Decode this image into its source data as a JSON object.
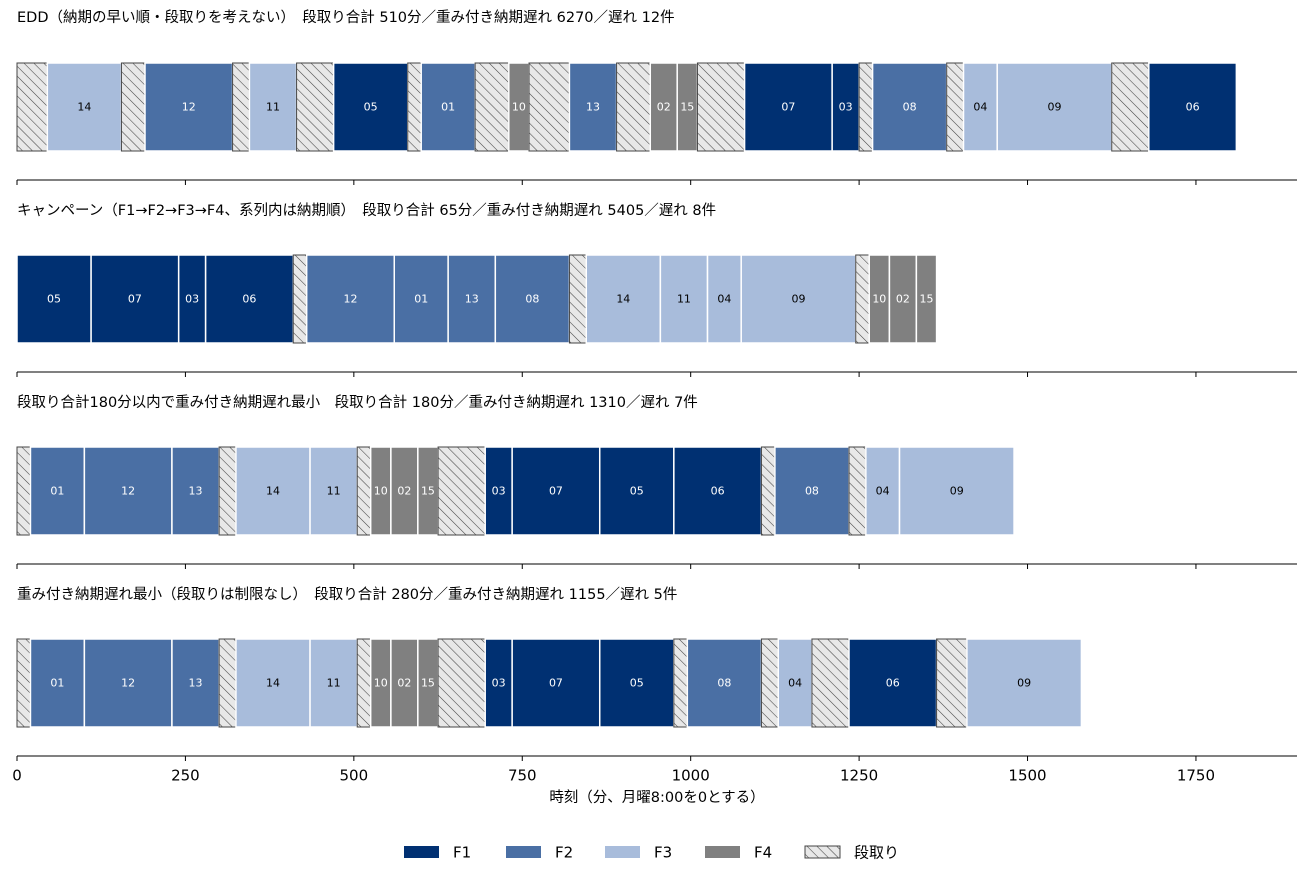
{
  "chart_data": {
    "type": "gantt",
    "xlabel": "時刻（分、月曜8:00を0とする）",
    "xlim": [
      0,
      1900
    ],
    "xticks": [
      0,
      250,
      500,
      750,
      1000,
      1250,
      1500,
      1750
    ],
    "xtick_labels": [
      "0",
      "250",
      "500",
      "750",
      "1000",
      "1250",
      "1500",
      "1750"
    ],
    "legend_position": "bottom-center",
    "colors": {
      "F1": "#003072",
      "F2": "#4a6fa4",
      "F3": "#a8bcdb",
      "F4": "#808080",
      "setup": "#e8e8e8"
    },
    "legend": [
      {
        "key": "F1",
        "label": "F1"
      },
      {
        "key": "F2",
        "label": "F2"
      },
      {
        "key": "F3",
        "label": "F3"
      },
      {
        "key": "F4",
        "label": "F4"
      },
      {
        "key": "setup",
        "label": "段取り"
      }
    ],
    "panels": [
      {
        "title": "EDD（納期の早い順・段取りを考えない）　段取り合計 510分／重み付き納期遅れ 6270／遅れ 12件",
        "bars": [
          {
            "kind": "setup",
            "start": 0,
            "end": 45
          },
          {
            "kind": "job",
            "family": "F3",
            "label": "14",
            "start": 45,
            "end": 155
          },
          {
            "kind": "setup",
            "start": 155,
            "end": 190
          },
          {
            "kind": "job",
            "family": "F2",
            "label": "12",
            "start": 190,
            "end": 320
          },
          {
            "kind": "setup",
            "start": 320,
            "end": 345
          },
          {
            "kind": "job",
            "family": "F3",
            "label": "11",
            "start": 345,
            "end": 415
          },
          {
            "kind": "setup",
            "start": 415,
            "end": 470
          },
          {
            "kind": "job",
            "family": "F1",
            "label": "05",
            "start": 470,
            "end": 580
          },
          {
            "kind": "setup",
            "start": 580,
            "end": 600
          },
          {
            "kind": "job",
            "family": "F2",
            "label": "01",
            "start": 600,
            "end": 680
          },
          {
            "kind": "setup",
            "start": 680,
            "end": 730
          },
          {
            "kind": "job",
            "family": "F4",
            "label": "10",
            "start": 730,
            "end": 760
          },
          {
            "kind": "setup",
            "start": 760,
            "end": 820
          },
          {
            "kind": "job",
            "family": "F2",
            "label": "13",
            "start": 820,
            "end": 890
          },
          {
            "kind": "setup",
            "start": 890,
            "end": 940
          },
          {
            "kind": "job",
            "family": "F4",
            "label": "02",
            "start": 940,
            "end": 980
          },
          {
            "kind": "job",
            "family": "F4",
            "label": "15",
            "start": 980,
            "end": 1010
          },
          {
            "kind": "setup",
            "start": 1010,
            "end": 1080
          },
          {
            "kind": "job",
            "family": "F1",
            "label": "07",
            "start": 1080,
            "end": 1210
          },
          {
            "kind": "job",
            "family": "F1",
            "label": "03",
            "start": 1210,
            "end": 1250
          },
          {
            "kind": "setup",
            "start": 1250,
            "end": 1270
          },
          {
            "kind": "job",
            "family": "F2",
            "label": "08",
            "start": 1270,
            "end": 1380
          },
          {
            "kind": "setup",
            "start": 1380,
            "end": 1405
          },
          {
            "kind": "job",
            "family": "F3",
            "label": "04",
            "start": 1405,
            "end": 1455
          },
          {
            "kind": "job",
            "family": "F3",
            "label": "09",
            "start": 1455,
            "end": 1625
          },
          {
            "kind": "setup",
            "start": 1625,
            "end": 1680
          },
          {
            "kind": "job",
            "family": "F1",
            "label": "06",
            "start": 1680,
            "end": 1810
          }
        ]
      },
      {
        "title": "キャンペーン（F1→F2→F3→F4、系列内は納期順）　段取り合計 65分／重み付き納期遅れ 5405／遅れ 8件",
        "bars": [
          {
            "kind": "job",
            "family": "F1",
            "label": "05",
            "start": 0,
            "end": 110
          },
          {
            "kind": "job",
            "family": "F1",
            "label": "07",
            "start": 110,
            "end": 240
          },
          {
            "kind": "job",
            "family": "F1",
            "label": "03",
            "start": 240,
            "end": 280
          },
          {
            "kind": "job",
            "family": "F1",
            "label": "06",
            "start": 280,
            "end": 410
          },
          {
            "kind": "setup",
            "start": 410,
            "end": 430
          },
          {
            "kind": "job",
            "family": "F2",
            "label": "12",
            "start": 430,
            "end": 560
          },
          {
            "kind": "job",
            "family": "F2",
            "label": "01",
            "start": 560,
            "end": 640
          },
          {
            "kind": "job",
            "family": "F2",
            "label": "13",
            "start": 640,
            "end": 710
          },
          {
            "kind": "job",
            "family": "F2",
            "label": "08",
            "start": 710,
            "end": 820
          },
          {
            "kind": "setup",
            "start": 820,
            "end": 845
          },
          {
            "kind": "job",
            "family": "F3",
            "label": "14",
            "start": 845,
            "end": 955
          },
          {
            "kind": "job",
            "family": "F3",
            "label": "11",
            "start": 955,
            "end": 1025
          },
          {
            "kind": "job",
            "family": "F3",
            "label": "04",
            "start": 1025,
            "end": 1075
          },
          {
            "kind": "job",
            "family": "F3",
            "label": "09",
            "start": 1075,
            "end": 1245
          },
          {
            "kind": "setup",
            "start": 1245,
            "end": 1265
          },
          {
            "kind": "job",
            "family": "F4",
            "label": "10",
            "start": 1265,
            "end": 1295
          },
          {
            "kind": "job",
            "family": "F4",
            "label": "02",
            "start": 1295,
            "end": 1335
          },
          {
            "kind": "job",
            "family": "F4",
            "label": "15",
            "start": 1335,
            "end": 1365
          }
        ]
      },
      {
        "title": "段取り合計180分以内で重み付き納期遅れ最小　段取り合計 180分／重み付き納期遅れ 1310／遅れ 7件",
        "bars": [
          {
            "kind": "setup",
            "start": 0,
            "end": 20
          },
          {
            "kind": "job",
            "family": "F2",
            "label": "01",
            "start": 20,
            "end": 100
          },
          {
            "kind": "job",
            "family": "F2",
            "label": "12",
            "start": 100,
            "end": 230
          },
          {
            "kind": "job",
            "family": "F2",
            "label": "13",
            "start": 230,
            "end": 300
          },
          {
            "kind": "setup",
            "start": 300,
            "end": 325
          },
          {
            "kind": "job",
            "family": "F3",
            "label": "14",
            "start": 325,
            "end": 435
          },
          {
            "kind": "job",
            "family": "F3",
            "label": "11",
            "start": 435,
            "end": 505
          },
          {
            "kind": "setup",
            "start": 505,
            "end": 525
          },
          {
            "kind": "job",
            "family": "F4",
            "label": "10",
            "start": 525,
            "end": 555
          },
          {
            "kind": "job",
            "family": "F4",
            "label": "02",
            "start": 555,
            "end": 595
          },
          {
            "kind": "job",
            "family": "F4",
            "label": "15",
            "start": 595,
            "end": 625
          },
          {
            "kind": "setup",
            "start": 625,
            "end": 695
          },
          {
            "kind": "job",
            "family": "F1",
            "label": "03",
            "start": 695,
            "end": 735
          },
          {
            "kind": "job",
            "family": "F1",
            "label": "07",
            "start": 735,
            "end": 865
          },
          {
            "kind": "job",
            "family": "F1",
            "label": "05",
            "start": 865,
            "end": 975
          },
          {
            "kind": "job",
            "family": "F1",
            "label": "06",
            "start": 975,
            "end": 1105
          },
          {
            "kind": "setup",
            "start": 1105,
            "end": 1125
          },
          {
            "kind": "job",
            "family": "F2",
            "label": "08",
            "start": 1125,
            "end": 1235
          },
          {
            "kind": "setup",
            "start": 1235,
            "end": 1260
          },
          {
            "kind": "job",
            "family": "F3",
            "label": "04",
            "start": 1260,
            "end": 1310
          },
          {
            "kind": "job",
            "family": "F3",
            "label": "09",
            "start": 1310,
            "end": 1480
          }
        ]
      },
      {
        "title": "重み付き納期遅れ最小（段取りは制限なし）　段取り合計 280分／重み付き納期遅れ 1155／遅れ 5件",
        "bars": [
          {
            "kind": "setup",
            "start": 0,
            "end": 20
          },
          {
            "kind": "job",
            "family": "F2",
            "label": "01",
            "start": 20,
            "end": 100
          },
          {
            "kind": "job",
            "family": "F2",
            "label": "12",
            "start": 100,
            "end": 230
          },
          {
            "kind": "job",
            "family": "F2",
            "label": "13",
            "start": 230,
            "end": 300
          },
          {
            "kind": "setup",
            "start": 300,
            "end": 325
          },
          {
            "kind": "job",
            "family": "F3",
            "label": "14",
            "start": 325,
            "end": 435
          },
          {
            "kind": "job",
            "family": "F3",
            "label": "11",
            "start": 435,
            "end": 505
          },
          {
            "kind": "setup",
            "start": 505,
            "end": 525
          },
          {
            "kind": "job",
            "family": "F4",
            "label": "10",
            "start": 525,
            "end": 555
          },
          {
            "kind": "job",
            "family": "F4",
            "label": "02",
            "start": 555,
            "end": 595
          },
          {
            "kind": "job",
            "family": "F4",
            "label": "15",
            "start": 595,
            "end": 625
          },
          {
            "kind": "setup",
            "start": 625,
            "end": 695
          },
          {
            "kind": "job",
            "family": "F1",
            "label": "03",
            "start": 695,
            "end": 735
          },
          {
            "kind": "job",
            "family": "F1",
            "label": "07",
            "start": 735,
            "end": 865
          },
          {
            "kind": "job",
            "family": "F1",
            "label": "05",
            "start": 865,
            "end": 975
          },
          {
            "kind": "setup",
            "start": 975,
            "end": 995
          },
          {
            "kind": "job",
            "family": "F2",
            "label": "08",
            "start": 995,
            "end": 1105
          },
          {
            "kind": "setup",
            "start": 1105,
            "end": 1130
          },
          {
            "kind": "job",
            "family": "F3",
            "label": "04",
            "start": 1130,
            "end": 1180
          },
          {
            "kind": "setup",
            "start": 1180,
            "end": 1235
          },
          {
            "kind": "job",
            "family": "F1",
            "label": "06",
            "start": 1235,
            "end": 1365
          },
          {
            "kind": "setup",
            "start": 1365,
            "end": 1410
          },
          {
            "kind": "job",
            "family": "F3",
            "label": "09",
            "start": 1410,
            "end": 1580
          }
        ]
      }
    ]
  }
}
